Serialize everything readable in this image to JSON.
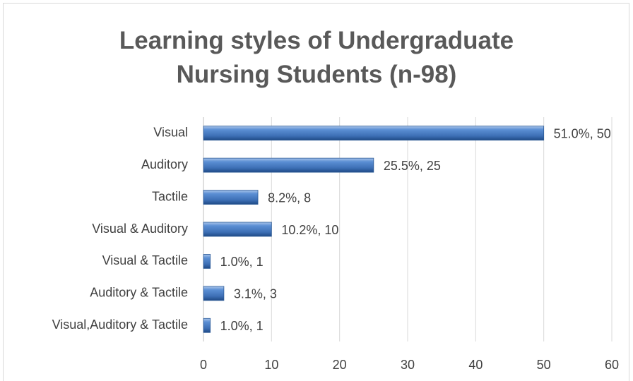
{
  "chart_data": {
    "type": "hbar",
    "title": "Learning styles of Undergraduate Nursing Students (n-98)",
    "categories": [
      "Visual",
      "Auditory",
      "Tactile",
      "Visual & Auditory",
      "Visual & Tactile",
      "Auditory & Tactile",
      "Visual,Auditory & Tactile"
    ],
    "values": [
      50,
      25,
      8,
      10,
      1,
      3,
      1
    ],
    "value_labels": [
      "51.0%, 50",
      "25.5%, 25",
      "8.2%, 8",
      "10.2%, 10",
      "1.0%, 1",
      "3.1%, 3",
      "1.0%, 1"
    ],
    "color": "#4a7ebb",
    "xlim": [
      0,
      60
    ],
    "xticks": [
      0,
      10,
      20,
      30,
      40,
      50,
      60
    ],
    "grid": true
  }
}
